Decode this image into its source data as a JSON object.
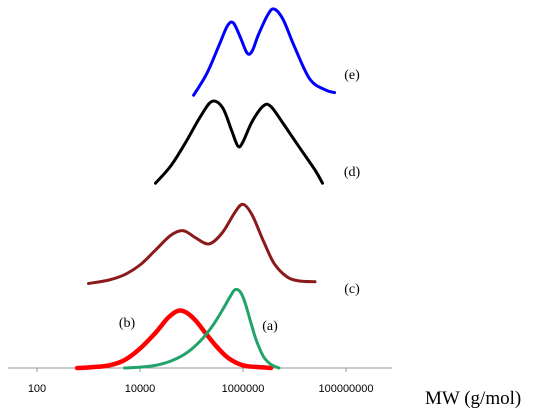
{
  "chart_data": {
    "type": "line",
    "title": "",
    "xlabel": "MW (g/mol)",
    "ylabel": "",
    "xscale": "log",
    "xlim": [
      10,
      1000000000
    ],
    "xticks": [
      {
        "value": 100,
        "label": "100"
      },
      {
        "value": 10000,
        "label": "10000"
      },
      {
        "value": 1000000,
        "label": "1000000"
      },
      {
        "value": 100000000,
        "label": "100000000"
      }
    ],
    "grid": false,
    "legend": "none",
    "series": [
      {
        "label": "(a)",
        "color": "#22a36a",
        "offset": 0,
        "points": [
          [
            5000,
            0
          ],
          [
            10000,
            0.01
          ],
          [
            20000,
            0.03
          ],
          [
            40000,
            0.08
          ],
          [
            80000,
            0.17
          ],
          [
            150000,
            0.31
          ],
          [
            250000,
            0.47
          ],
          [
            400000,
            0.66
          ],
          [
            550000,
            0.8
          ],
          [
            700000,
            0.89
          ],
          [
            900000,
            0.86
          ],
          [
            1100000,
            0.74
          ],
          [
            1400000,
            0.53
          ],
          [
            1800000,
            0.32
          ],
          [
            2500000,
            0.13
          ],
          [
            3500000,
            0.04
          ],
          [
            5000000,
            0
          ]
        ]
      },
      {
        "label": "(b)",
        "color": "#ff0000",
        "offset": 0,
        "points": [
          [
            600,
            0
          ],
          [
            1200,
            0.01
          ],
          [
            2500,
            0.03
          ],
          [
            5000,
            0.09
          ],
          [
            10000,
            0.22
          ],
          [
            20000,
            0.4
          ],
          [
            35000,
            0.57
          ],
          [
            55000,
            0.65
          ],
          [
            80000,
            0.63
          ],
          [
            120000,
            0.54
          ],
          [
            180000,
            0.41
          ],
          [
            300000,
            0.25
          ],
          [
            500000,
            0.12
          ],
          [
            800000,
            0.05
          ],
          [
            1200000,
            0.02
          ],
          [
            2000000,
            0.01
          ],
          [
            3500000,
            0
          ]
        ]
      },
      {
        "label": "(c)",
        "color": "#8b1a1a",
        "offset": 0.96,
        "points": [
          [
            1000,
            0
          ],
          [
            2500,
            0.04
          ],
          [
            5000,
            0.1
          ],
          [
            10000,
            0.21
          ],
          [
            20000,
            0.38
          ],
          [
            40000,
            0.55
          ],
          [
            70000,
            0.6
          ],
          [
            120000,
            0.52
          ],
          [
            220000,
            0.45
          ],
          [
            400000,
            0.58
          ],
          [
            700000,
            0.81
          ],
          [
            1000000,
            0.9
          ],
          [
            1500000,
            0.78
          ],
          [
            2500000,
            0.48
          ],
          [
            4000000,
            0.23
          ],
          [
            7000000,
            0.08
          ],
          [
            12000000,
            0.03
          ],
          [
            25000000,
            0.02
          ]
        ]
      },
      {
        "label": "(d)",
        "color": "#000000",
        "offset": 2.1,
        "points": [
          [
            20000,
            0
          ],
          [
            40000,
            0.2
          ],
          [
            80000,
            0.48
          ],
          [
            150000,
            0.76
          ],
          [
            250000,
            0.93
          ],
          [
            400000,
            0.86
          ],
          [
            600000,
            0.6
          ],
          [
            800000,
            0.42
          ],
          [
            1000000,
            0.47
          ],
          [
            1500000,
            0.7
          ],
          [
            2500000,
            0.88
          ],
          [
            3500000,
            0.87
          ],
          [
            6000000,
            0.68
          ],
          [
            12000000,
            0.42
          ],
          [
            25000000,
            0.15
          ],
          [
            35000000,
            0
          ]
        ]
      },
      {
        "label": "(e)",
        "color": "#0000ff",
        "offset": 3.1,
        "points": [
          [
            110000,
            0
          ],
          [
            200000,
            0.25
          ],
          [
            350000,
            0.58
          ],
          [
            500000,
            0.79
          ],
          [
            650000,
            0.82
          ],
          [
            900000,
            0.65
          ],
          [
            1200000,
            0.48
          ],
          [
            1500000,
            0.5
          ],
          [
            2000000,
            0.69
          ],
          [
            3000000,
            0.91
          ],
          [
            4000000,
            0.98
          ],
          [
            6000000,
            0.86
          ],
          [
            10000000,
            0.55
          ],
          [
            20000000,
            0.18
          ],
          [
            40000000,
            0.06
          ],
          [
            60000000,
            0.03
          ]
        ]
      }
    ]
  }
}
